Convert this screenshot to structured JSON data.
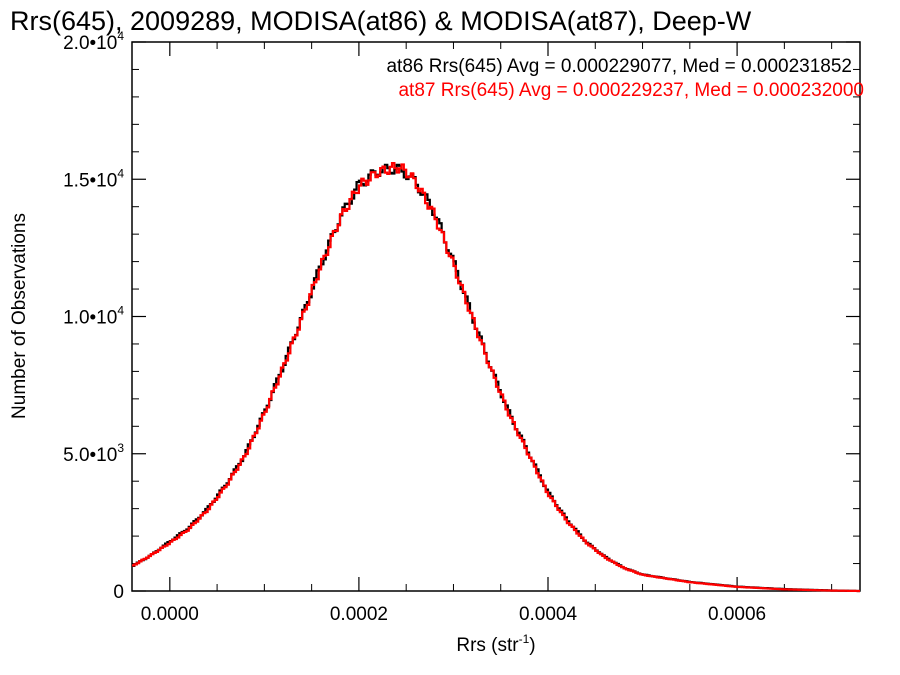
{
  "chart_data": {
    "type": "line",
    "title": "Rrs(645), 2009289, MODISA(at86) & MODISA(at87), Deep-W",
    "xlabel": "Rrs (str",
    "xlabel_exponent": "-1",
    "xlabel_close": ")",
    "ylabel": "Number of Observations",
    "xlim": [
      -4e-05,
      0.00073
    ],
    "ylim": [
      0,
      20000
    ],
    "xticks": [
      {
        "value": 0.0,
        "label": "0.0000"
      },
      {
        "value": 0.0002,
        "label": "0.0002"
      },
      {
        "value": 0.0004,
        "label": "0.0004"
      },
      {
        "value": 0.0006,
        "label": "0.0006"
      }
    ],
    "yticks": [
      {
        "value": 0,
        "mantissa": "0",
        "exponent": ""
      },
      {
        "value": 5000,
        "mantissa": "5.0•10",
        "exponent": "3"
      },
      {
        "value": 10000,
        "mantissa": "1.0•10",
        "exponent": "4"
      },
      {
        "value": 15000,
        "mantissa": "1.5•10",
        "exponent": "4"
      },
      {
        "value": 20000,
        "mantissa": "2.0•10",
        "exponent": "4"
      }
    ],
    "grid": false,
    "legend_position": "top-right",
    "series": [
      {
        "name": "at86",
        "annotation": "at86 Rrs(645) Avg = 0.000229077, Med = 0.000231852",
        "color": "#000000",
        "x": [
          -4e-05,
          -2e-05,
          0.0,
          2e-05,
          4e-05,
          6e-05,
          8e-05,
          0.0001,
          0.00012,
          0.00014,
          0.00016,
          0.00018,
          0.0002,
          0.00022,
          0.00024,
          0.00025,
          0.00026,
          0.00028,
          0.0003,
          0.00032,
          0.00034,
          0.00036,
          0.00038,
          0.0004,
          0.00042,
          0.00044,
          0.00046,
          0.00048,
          0.0005,
          0.00055,
          0.0006,
          0.00065,
          0.0007,
          0.00073
        ],
        "y": [
          900,
          1300,
          1800,
          2300,
          3000,
          3900,
          5000,
          6500,
          8200,
          10000,
          11900,
          13600,
          14800,
          15300,
          15400,
          15200,
          14900,
          13800,
          12000,
          10000,
          8100,
          6400,
          5000,
          3600,
          2600,
          1800,
          1250,
          850,
          600,
          330,
          160,
          70,
          20,
          0
        ]
      },
      {
        "name": "at87",
        "annotation": "at87 Rrs(645) Avg = 0.000229237, Med = 0.000232000",
        "color": "#ff0000",
        "x": [
          -4e-05,
          -2e-05,
          0.0,
          2e-05,
          4e-05,
          6e-05,
          8e-05,
          0.0001,
          0.00012,
          0.00014,
          0.00016,
          0.00018,
          0.0002,
          0.00022,
          0.00024,
          0.00025,
          0.00026,
          0.00028,
          0.0003,
          0.00032,
          0.00034,
          0.00036,
          0.00038,
          0.0004,
          0.00042,
          0.00044,
          0.00046,
          0.00048,
          0.0005,
          0.00055,
          0.0006,
          0.00065,
          0.0007,
          0.00073
        ],
        "y": [
          900,
          1300,
          1750,
          2250,
          2950,
          3850,
          4950,
          6450,
          8150,
          9950,
          11850,
          13550,
          14750,
          15250,
          15450,
          15300,
          14900,
          13700,
          11900,
          9950,
          8050,
          6350,
          4950,
          3550,
          2550,
          1780,
          1230,
          840,
          590,
          320,
          150,
          60,
          15,
          0
        ]
      }
    ]
  }
}
